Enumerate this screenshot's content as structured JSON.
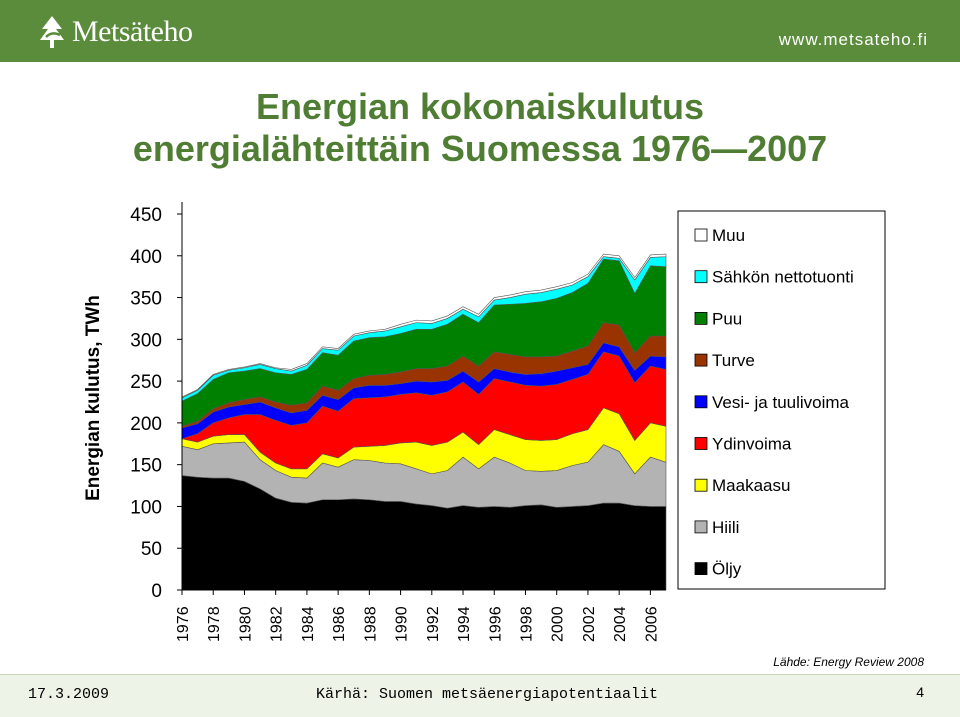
{
  "header": {
    "logo_text": "Metsäteho",
    "url": "www.metsateho.fi"
  },
  "slide": {
    "title_line1": "Energian kokonaiskulutus",
    "title_line2": "energialähteittäin Suomessa 1976—2007",
    "source": "Lähde: Energy Review 2008"
  },
  "footer": {
    "date": "17.3.2009",
    "text": "Kärhä: Suomen metsäenergiapotentiaalit",
    "page": "4"
  },
  "chart_data": {
    "type": "area",
    "stacked": true,
    "xlabel": "",
    "ylabel": "Energian kulutus, TWh",
    "ylim": [
      0,
      450
    ],
    "yticks": [
      "450",
      "400",
      "350",
      "300",
      "250",
      "200",
      "150",
      "100",
      "50",
      "0"
    ],
    "x": [
      1976,
      1977,
      1978,
      1979,
      1980,
      1981,
      1982,
      1983,
      1984,
      1985,
      1986,
      1987,
      1988,
      1989,
      1990,
      1991,
      1992,
      1993,
      1994,
      1995,
      1996,
      1997,
      1998,
      1999,
      2000,
      2001,
      2002,
      2003,
      2004,
      2005,
      2006,
      2007
    ],
    "xtick_labels": [
      "1976",
      "1978",
      "1980",
      "1982",
      "1984",
      "1986",
      "1988",
      "1990",
      "1992",
      "1994",
      "1996",
      "1998",
      "2000",
      "2002",
      "2004",
      "2006"
    ],
    "legend_position": "right",
    "series": [
      {
        "name": "Öljy",
        "color": "#000000",
        "values": [
          137,
          135,
          134,
          134,
          130,
          121,
          110,
          105,
          104,
          108,
          108,
          109,
          108,
          106,
          106,
          103,
          101,
          98,
          101,
          99,
          100,
          99,
          101,
          102,
          99,
          100,
          101,
          104,
          104,
          101,
          100,
          100
        ]
      },
      {
        "name": "Hiili",
        "color": "#b3b3b3",
        "values": [
          35,
          33,
          41,
          42,
          47,
          35,
          33,
          30,
          30,
          44,
          39,
          47,
          47,
          46,
          45,
          42,
          38,
          45,
          58,
          46,
          59,
          53,
          42,
          40,
          44,
          49,
          52,
          70,
          62,
          38,
          59,
          53
        ]
      },
      {
        "name": "Maakaasu",
        "color": "#ffff00",
        "values": [
          9,
          9,
          9,
          10,
          9,
          9,
          9,
          10,
          11,
          11,
          11,
          15,
          17,
          21,
          25,
          32,
          34,
          34,
          30,
          29,
          33,
          34,
          37,
          37,
          37,
          38,
          39,
          44,
          45,
          40,
          41,
          43
        ]
      },
      {
        "name": "Ydinvoima",
        "color": "#ff0000",
        "values": [
          0,
          10,
          16,
          20,
          24,
          45,
          51,
          52,
          55,
          57,
          56,
          58,
          58,
          58,
          58,
          59,
          60,
          60,
          60,
          60,
          61,
          63,
          65,
          65,
          66,
          65,
          66,
          67,
          69,
          69,
          68,
          68
        ]
      },
      {
        "name": "Vesi- ja tuulivoima",
        "color": "#0000ff",
        "values": [
          13,
          12,
          13,
          13,
          12,
          15,
          15,
          15,
          15,
          13,
          14,
          13,
          15,
          14,
          13,
          14,
          16,
          14,
          13,
          15,
          12,
          12,
          13,
          15,
          16,
          14,
          12,
          11,
          11,
          15,
          12,
          15
        ]
      },
      {
        "name": "Turve",
        "color": "#993300",
        "values": [
          2,
          3,
          4,
          5,
          6,
          6,
          7,
          9,
          9,
          11,
          11,
          11,
          12,
          13,
          14,
          15,
          16,
          17,
          18,
          19,
          20,
          21,
          21,
          20,
          18,
          20,
          22,
          24,
          26,
          21,
          24,
          25
        ]
      },
      {
        "name": "Puu",
        "color": "#008000",
        "values": [
          30,
          33,
          35,
          36,
          34,
          34,
          35,
          37,
          40,
          40,
          42,
          45,
          45,
          45,
          46,
          47,
          47,
          50,
          50,
          52,
          56,
          60,
          64,
          66,
          69,
          70,
          75,
          76,
          77,
          71,
          84,
          83
        ]
      },
      {
        "name": "Sähkön nettotuonti",
        "color": "#00ffff",
        "values": [
          4,
          4,
          5,
          3,
          4,
          5,
          5,
          4,
          5,
          5,
          6,
          6,
          6,
          7,
          8,
          8,
          7,
          7,
          6,
          7,
          6,
          8,
          11,
          11,
          11,
          9,
          8,
          3,
          3,
          16,
          10,
          12
        ]
      },
      {
        "name": "Muu",
        "color": "#ffffff",
        "values": [
          1,
          1,
          1,
          1,
          1,
          1,
          1,
          2,
          2,
          2,
          2,
          2,
          2,
          2,
          3,
          3,
          3,
          3,
          3,
          3,
          3,
          3,
          3,
          3,
          3,
          3,
          3,
          3,
          3,
          3,
          3,
          3
        ]
      }
    ]
  }
}
